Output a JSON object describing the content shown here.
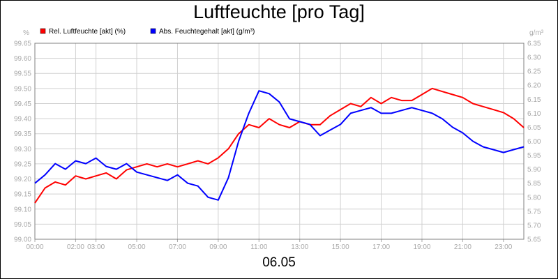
{
  "chart_data": {
    "type": "line",
    "title": "Luftfeuchte [pro Tag]",
    "date_label": "06.05",
    "y_left_unit": "%",
    "y_right_unit": "g/m³",
    "y_left_range": [
      99.0,
      99.65
    ],
    "y_right_range": [
      5.65,
      6.35
    ],
    "y_left_ticks": [
      "99.00",
      "99.05",
      "99.10",
      "99.15",
      "99.20",
      "99.25",
      "99.30",
      "99.35",
      "99.40",
      "99.45",
      "99.50",
      "99.55",
      "99.60",
      "99.65"
    ],
    "y_right_ticks": [
      "5.65",
      "5.70",
      "5.75",
      "5.80",
      "5.85",
      "5.90",
      "5.95",
      "6.00",
      "6.05",
      "6.10",
      "6.15",
      "6.20",
      "6.25",
      "6.30",
      "6.35"
    ],
    "x_range_hours": [
      0,
      24
    ],
    "x_ticks": [
      {
        "label": "00:00",
        "hour": 0
      },
      {
        "label": "02:00",
        "hour": 2
      },
      {
        "label": "03:00",
        "hour": 3
      },
      {
        "label": "05:00",
        "hour": 5
      },
      {
        "label": "07:00",
        "hour": 7
      },
      {
        "label": "09:00",
        "hour": 9
      },
      {
        "label": "11:00",
        "hour": 11
      },
      {
        "label": "13:00",
        "hour": 13
      },
      {
        "label": "15:00",
        "hour": 15
      },
      {
        "label": "17:00",
        "hour": 17
      },
      {
        "label": "19:00",
        "hour": 19
      },
      {
        "label": "21:00",
        "hour": 21
      },
      {
        "label": "23:00",
        "hour": 23
      }
    ],
    "grid": true,
    "legend_position": "top-left",
    "series": [
      {
        "name": "Rel. Luftfeuchte [akt] (%)",
        "color": "#ff0000",
        "axis": "left",
        "x": [
          0,
          0.5,
          1,
          1.5,
          2,
          2.5,
          3,
          3.5,
          4,
          4.5,
          5,
          5.5,
          6,
          6.5,
          7,
          7.5,
          8,
          8.5,
          9,
          9.5,
          10,
          10.5,
          11,
          11.5,
          12,
          12.5,
          13,
          13.5,
          14,
          14.5,
          15,
          15.5,
          16,
          16.5,
          17,
          17.5,
          18,
          18.5,
          19,
          19.5,
          20,
          20.5,
          21,
          21.5,
          22,
          22.5,
          23,
          23.5,
          24
        ],
        "values": [
          99.12,
          99.17,
          99.19,
          99.18,
          99.21,
          99.2,
          99.21,
          99.22,
          99.2,
          99.23,
          99.24,
          99.25,
          99.24,
          99.25,
          99.24,
          99.25,
          99.26,
          99.25,
          99.27,
          99.3,
          99.35,
          99.38,
          99.37,
          99.4,
          99.38,
          99.37,
          99.39,
          99.38,
          99.38,
          99.41,
          99.43,
          99.45,
          99.44,
          99.47,
          99.45,
          99.47,
          99.46,
          99.46,
          99.48,
          99.5,
          99.49,
          99.48,
          99.47,
          99.45,
          99.44,
          99.43,
          99.42,
          99.4,
          99.37
        ]
      },
      {
        "name": "Abs. Feuchtegehalt [akt] (g/m³)",
        "color": "#0000ff",
        "axis": "right",
        "x": [
          0,
          0.5,
          1,
          1.5,
          2,
          2.5,
          3,
          3.5,
          4,
          4.5,
          5,
          5.5,
          6,
          6.5,
          7,
          7.5,
          8,
          8.5,
          9,
          9.5,
          10,
          10.5,
          11,
          11.5,
          12,
          12.5,
          13,
          13.5,
          14,
          14.5,
          15,
          15.5,
          16,
          16.5,
          17,
          17.5,
          18,
          18.5,
          19,
          19.5,
          20,
          20.5,
          21,
          21.5,
          22,
          22.5,
          23,
          23.5,
          24
        ],
        "values": [
          5.85,
          5.88,
          5.92,
          5.9,
          5.93,
          5.92,
          5.94,
          5.91,
          5.9,
          5.92,
          5.89,
          5.88,
          5.87,
          5.86,
          5.88,
          5.85,
          5.84,
          5.8,
          5.79,
          5.87,
          6.0,
          6.1,
          6.18,
          6.17,
          6.14,
          6.08,
          6.07,
          6.06,
          6.02,
          6.04,
          6.06,
          6.1,
          6.11,
          6.12,
          6.1,
          6.1,
          6.11,
          6.12,
          6.11,
          6.1,
          6.08,
          6.05,
          6.03,
          6.0,
          5.98,
          5.97,
          5.96,
          5.97,
          5.98
        ]
      }
    ]
  }
}
